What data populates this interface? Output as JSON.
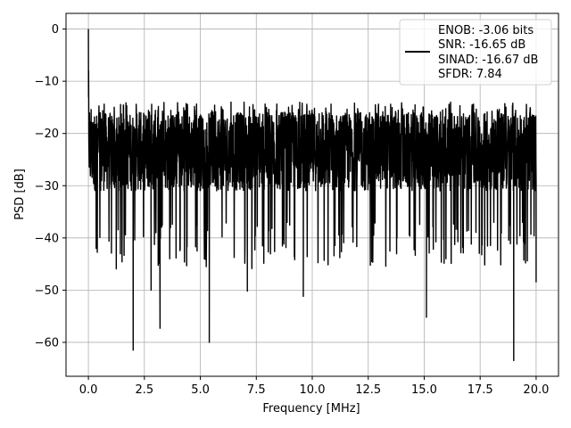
{
  "chart_data": {
    "type": "line",
    "title": "",
    "xlabel": "Frequency [MHz]",
    "ylabel": "PSD [dB]",
    "xlim": [
      -1.0,
      21.0
    ],
    "ylim": [
      -66.5,
      3.0
    ],
    "xticks": [
      0.0,
      2.5,
      5.0,
      7.5,
      10.0,
      12.5,
      15.0,
      17.5,
      20.0
    ],
    "xtick_labels": [
      "0.0",
      "2.5",
      "5.0",
      "7.5",
      "10.0",
      "12.5",
      "15.0",
      "17.5",
      "20.0"
    ],
    "yticks": [
      0,
      -10,
      -20,
      -30,
      -40,
      -50,
      -60
    ],
    "ytick_labels": [
      "0",
      "−10",
      "−20",
      "−30",
      "−40",
      "−50",
      "−60"
    ],
    "grid": true,
    "legend_position": "top-right",
    "legend_lines": [
      "ENOB: -3.06 bits",
      "SNR: -16.65 dB",
      "SINAD: -16.67 dB",
      "SFDR: 7.84"
    ],
    "series": [
      {
        "color": "#000000",
        "noise_band_db": [
          -35,
          -14
        ],
        "peak": {
          "x": 0.0,
          "y": 0.0
        },
        "dips": [
          {
            "x": 2.0,
            "y": -61.5
          },
          {
            "x": 2.8,
            "y": -50.0
          },
          {
            "x": 3.2,
            "y": -57.3
          },
          {
            "x": 5.4,
            "y": -60.0
          },
          {
            "x": 7.1,
            "y": -50.2
          },
          {
            "x": 9.6,
            "y": -51.2
          },
          {
            "x": 15.1,
            "y": -55.2
          },
          {
            "x": 19.0,
            "y": -63.5
          },
          {
            "x": 20.0,
            "y": -48.5
          }
        ]
      }
    ]
  }
}
